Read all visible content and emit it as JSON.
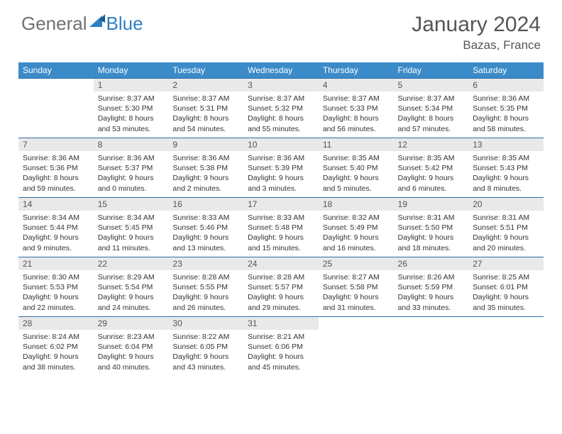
{
  "brand": {
    "part1": "General",
    "part2": "Blue"
  },
  "title": "January 2024",
  "location": "Bazas, France",
  "colors": {
    "header_bg": "#3b8bc9",
    "header_text": "#ffffff",
    "day_header_bg": "#e9e9e9",
    "border": "#2f6ea8",
    "title_color": "#555555",
    "body_text": "#333333"
  },
  "weekdays": [
    "Sunday",
    "Monday",
    "Tuesday",
    "Wednesday",
    "Thursday",
    "Friday",
    "Saturday"
  ],
  "weeks": [
    [
      null,
      {
        "n": "1",
        "sunrise": "8:37 AM",
        "sunset": "5:30 PM",
        "daylight": "8 hours and 53 minutes."
      },
      {
        "n": "2",
        "sunrise": "8:37 AM",
        "sunset": "5:31 PM",
        "daylight": "8 hours and 54 minutes."
      },
      {
        "n": "3",
        "sunrise": "8:37 AM",
        "sunset": "5:32 PM",
        "daylight": "8 hours and 55 minutes."
      },
      {
        "n": "4",
        "sunrise": "8:37 AM",
        "sunset": "5:33 PM",
        "daylight": "8 hours and 56 minutes."
      },
      {
        "n": "5",
        "sunrise": "8:37 AM",
        "sunset": "5:34 PM",
        "daylight": "8 hours and 57 minutes."
      },
      {
        "n": "6",
        "sunrise": "8:36 AM",
        "sunset": "5:35 PM",
        "daylight": "8 hours and 58 minutes."
      }
    ],
    [
      {
        "n": "7",
        "sunrise": "8:36 AM",
        "sunset": "5:36 PM",
        "daylight": "8 hours and 59 minutes."
      },
      {
        "n": "8",
        "sunrise": "8:36 AM",
        "sunset": "5:37 PM",
        "daylight": "9 hours and 0 minutes."
      },
      {
        "n": "9",
        "sunrise": "8:36 AM",
        "sunset": "5:38 PM",
        "daylight": "9 hours and 2 minutes."
      },
      {
        "n": "10",
        "sunrise": "8:36 AM",
        "sunset": "5:39 PM",
        "daylight": "9 hours and 3 minutes."
      },
      {
        "n": "11",
        "sunrise": "8:35 AM",
        "sunset": "5:40 PM",
        "daylight": "9 hours and 5 minutes."
      },
      {
        "n": "12",
        "sunrise": "8:35 AM",
        "sunset": "5:42 PM",
        "daylight": "9 hours and 6 minutes."
      },
      {
        "n": "13",
        "sunrise": "8:35 AM",
        "sunset": "5:43 PM",
        "daylight": "9 hours and 8 minutes."
      }
    ],
    [
      {
        "n": "14",
        "sunrise": "8:34 AM",
        "sunset": "5:44 PM",
        "daylight": "9 hours and 9 minutes."
      },
      {
        "n": "15",
        "sunrise": "8:34 AM",
        "sunset": "5:45 PM",
        "daylight": "9 hours and 11 minutes."
      },
      {
        "n": "16",
        "sunrise": "8:33 AM",
        "sunset": "5:46 PM",
        "daylight": "9 hours and 13 minutes."
      },
      {
        "n": "17",
        "sunrise": "8:33 AM",
        "sunset": "5:48 PM",
        "daylight": "9 hours and 15 minutes."
      },
      {
        "n": "18",
        "sunrise": "8:32 AM",
        "sunset": "5:49 PM",
        "daylight": "9 hours and 16 minutes."
      },
      {
        "n": "19",
        "sunrise": "8:31 AM",
        "sunset": "5:50 PM",
        "daylight": "9 hours and 18 minutes."
      },
      {
        "n": "20",
        "sunrise": "8:31 AM",
        "sunset": "5:51 PM",
        "daylight": "9 hours and 20 minutes."
      }
    ],
    [
      {
        "n": "21",
        "sunrise": "8:30 AM",
        "sunset": "5:53 PM",
        "daylight": "9 hours and 22 minutes."
      },
      {
        "n": "22",
        "sunrise": "8:29 AM",
        "sunset": "5:54 PM",
        "daylight": "9 hours and 24 minutes."
      },
      {
        "n": "23",
        "sunrise": "8:28 AM",
        "sunset": "5:55 PM",
        "daylight": "9 hours and 26 minutes."
      },
      {
        "n": "24",
        "sunrise": "8:28 AM",
        "sunset": "5:57 PM",
        "daylight": "9 hours and 29 minutes."
      },
      {
        "n": "25",
        "sunrise": "8:27 AM",
        "sunset": "5:58 PM",
        "daylight": "9 hours and 31 minutes."
      },
      {
        "n": "26",
        "sunrise": "8:26 AM",
        "sunset": "5:59 PM",
        "daylight": "9 hours and 33 minutes."
      },
      {
        "n": "27",
        "sunrise": "8:25 AM",
        "sunset": "6:01 PM",
        "daylight": "9 hours and 35 minutes."
      }
    ],
    [
      {
        "n": "28",
        "sunrise": "8:24 AM",
        "sunset": "6:02 PM",
        "daylight": "9 hours and 38 minutes."
      },
      {
        "n": "29",
        "sunrise": "8:23 AM",
        "sunset": "6:04 PM",
        "daylight": "9 hours and 40 minutes."
      },
      {
        "n": "30",
        "sunrise": "8:22 AM",
        "sunset": "6:05 PM",
        "daylight": "9 hours and 43 minutes."
      },
      {
        "n": "31",
        "sunrise": "8:21 AM",
        "sunset": "6:06 PM",
        "daylight": "9 hours and 45 minutes."
      },
      null,
      null,
      null
    ]
  ]
}
